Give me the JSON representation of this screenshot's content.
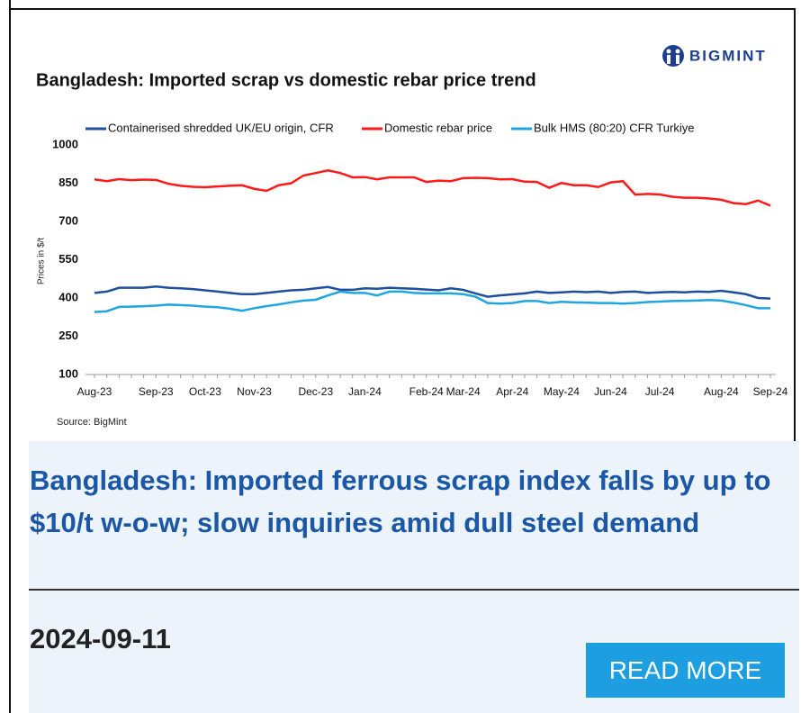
{
  "logo": "BIGMINT",
  "chart_data": {
    "type": "line",
    "title": "Bangladesh: Imported scrap vs domestic rebar price trend",
    "y_label": "Prices in $/t",
    "source": "Source: BigMint",
    "categories": [
      "Aug-23",
      null,
      null,
      null,
      null,
      "Sep-23",
      null,
      null,
      null,
      "Oct-23",
      null,
      null,
      null,
      "Nov-23",
      null,
      null,
      null,
      null,
      "Dec-23",
      null,
      null,
      null,
      "Jan-24",
      null,
      null,
      null,
      null,
      "Feb-24",
      null,
      null,
      "Mar-24",
      null,
      null,
      null,
      "Apr-24",
      null,
      null,
      null,
      "May-24",
      null,
      null,
      null,
      "Jun-24",
      null,
      null,
      null,
      "Jul-24",
      null,
      null,
      null,
      null,
      "Aug-24",
      null,
      null,
      null,
      "Sep-24"
    ],
    "series": [
      {
        "name": "Containerised shredded UK/EU origin, CFR",
        "color": "#1f4e9c",
        "values": [
          420,
          425,
          440,
          440,
          440,
          445,
          440,
          438,
          435,
          430,
          425,
          420,
          415,
          415,
          420,
          425,
          430,
          432,
          438,
          443,
          432,
          432,
          438,
          436,
          440,
          438,
          436,
          433,
          430,
          438,
          432,
          418,
          405,
          410,
          414,
          418,
          425,
          420,
          422,
          425,
          423,
          425,
          420,
          424,
          425,
          420,
          422,
          424,
          422,
          425,
          424,
          428,
          422,
          415,
          400,
          398
        ]
      },
      {
        "name": "Domestic rebar price",
        "color": "#ff1a1a",
        "values": [
          865,
          858,
          866,
          862,
          864,
          863,
          848,
          840,
          836,
          834,
          837,
          840,
          842,
          828,
          820,
          842,
          850,
          880,
          890,
          900,
          890,
          873,
          874,
          865,
          873,
          873,
          873,
          855,
          860,
          858,
          870,
          871,
          870,
          865,
          866,
          856,
          855,
          832,
          851,
          842,
          842,
          835,
          853,
          858,
          805,
          808,
          806,
          797,
          793,
          793,
          790,
          785,
          772,
          768,
          782,
          762
        ]
      },
      {
        "name": "Bulk HMS (80:20) CFR Turkiye",
        "color": "#1fa6e0",
        "values": [
          345,
          348,
          365,
          366,
          368,
          370,
          374,
          372,
          370,
          366,
          364,
          358,
          350,
          360,
          368,
          375,
          383,
          390,
          393,
          410,
          425,
          420,
          420,
          410,
          425,
          425,
          420,
          418,
          418,
          418,
          415,
          405,
          380,
          378,
          380,
          388,
          388,
          380,
          385,
          383,
          382,
          380,
          380,
          378,
          380,
          384,
          386,
          388,
          389,
          390,
          392,
          390,
          382,
          372,
          360,
          360
        ]
      }
    ],
    "ylim": [
      100,
      1000
    ],
    "yticks": [
      100,
      250,
      400,
      550,
      700,
      850,
      1000
    ],
    "grid": false
  },
  "article": {
    "headline": "Bangladesh: Imported ferrous scrap index falls by up to $10/t w-o-w; slow inquiries amid dull steel demand",
    "date": "2024-09-11",
    "button": "READ MORE"
  }
}
